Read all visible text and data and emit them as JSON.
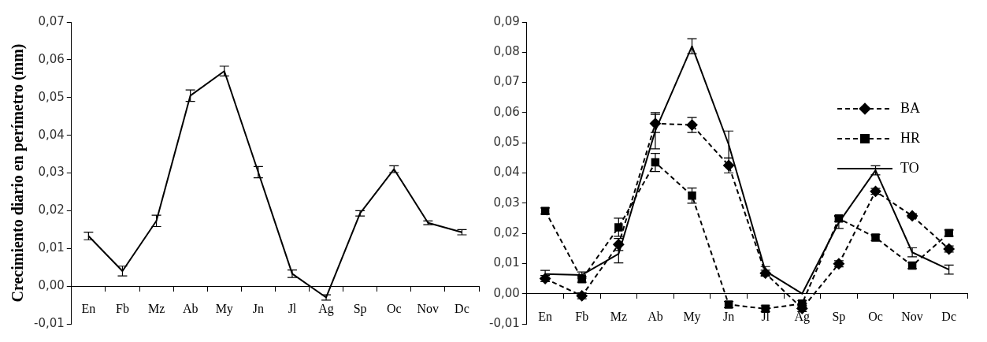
{
  "chart_data": [
    {
      "type": "line",
      "ylabel": "Crecimiento diario en perímetro (mm)",
      "categories": [
        "En",
        "Fb",
        "Mz",
        "Ab",
        "My",
        "Jn",
        "Jl",
        "Ag",
        "Sp",
        "Oc",
        "Nov",
        "Dc"
      ],
      "ylim": [
        -0.01,
        0.07
      ],
      "yticks": [
        {
          "value": -0.01,
          "label": "-0,01"
        },
        {
          "value": 0,
          "label": "0,00"
        },
        {
          "value": 0.01,
          "label": "0,01"
        },
        {
          "value": 0.02,
          "label": "0,02"
        },
        {
          "value": 0.03,
          "label": "0,03"
        },
        {
          "value": 0.04,
          "label": "0,04"
        },
        {
          "value": 0.05,
          "label": "0,05"
        },
        {
          "value": 0.06,
          "label": "0,06"
        },
        {
          "value": 0.07,
          "label": "0,07"
        }
      ],
      "grid": false,
      "legend": false,
      "line_style": "solid",
      "series": [
        {
          "color": "#000000",
          "values": [
            0.0133,
            0.004,
            0.0173,
            0.0505,
            0.057,
            0.0302,
            0.0033,
            -0.003,
            0.0193,
            0.031,
            0.0168,
            0.0143
          ],
          "errors": [
            0.001,
            0.0013,
            0.0015,
            0.0015,
            0.0013,
            0.0015,
            0.001,
            0.0007,
            0.0007,
            0.0009,
            0.0005,
            0.0007
          ]
        }
      ]
    },
    {
      "type": "line",
      "categories": [
        "En",
        "Fb",
        "Mz",
        "Ab",
        "My",
        "Jn",
        "Jl",
        "Ag",
        "Sp",
        "Oc",
        "Nov",
        "Dc"
      ],
      "ylim": [
        -0.01,
        0.09
      ],
      "yticks": [
        {
          "value": -0.01,
          "label": "-0,01"
        },
        {
          "value": 0,
          "label": "0,00"
        },
        {
          "value": 0.01,
          "label": "0,01"
        },
        {
          "value": 0.02,
          "label": "0,02"
        },
        {
          "value": 0.03,
          "label": "0,03"
        },
        {
          "value": 0.04,
          "label": "0,04"
        },
        {
          "value": 0.05,
          "label": "0,05"
        },
        {
          "value": 0.06,
          "label": "0,06"
        },
        {
          "value": 0.07,
          "label": "0,07"
        },
        {
          "value": 0.08,
          "label": "0,08"
        },
        {
          "value": 0.09,
          "label": "0,09"
        }
      ],
      "grid": false,
      "legend": "top right",
      "series": [
        {
          "name": "BA",
          "color": "#000000",
          "marker": "diamond",
          "line_style": "dashed",
          "values": [
            0.005,
            -0.0007,
            0.0163,
            0.0564,
            0.0559,
            0.0425,
            0.0068,
            -0.0049,
            0.0099,
            0.0339,
            0.0258,
            0.0148
          ],
          "errors": [
            0.001,
            0.001,
            0.002,
            0.003,
            0.0025,
            0.0025,
            0.001,
            0.001,
            0.001,
            0.001,
            0.0007,
            0.001
          ]
        },
        {
          "name": "HR",
          "color": "#000000",
          "marker": "square",
          "line_style": "dashed",
          "values": [
            0.0274,
            0.0048,
            0.022,
            0.0435,
            0.0325,
            -0.0036,
            -0.005,
            -0.0033,
            0.0249,
            0.0186,
            0.0093,
            0.0201
          ],
          "errors": [
            0.001,
            0.001,
            0.003,
            0.003,
            0.0025,
            0.001,
            0.001,
            0.001,
            0.001,
            0.001,
            0.001,
            0.001
          ]
        },
        {
          "name": "TO",
          "color": "#000000",
          "line_style": "solid",
          "values": [
            0.0065,
            0.0062,
            0.0132,
            0.054,
            0.082,
            0.0494,
            0.0075,
            0,
            0.0236,
            0.0409,
            0.0137,
            0.008
          ],
          "errors": [
            0.0012,
            0.001,
            0.003,
            0.006,
            0.0025,
            0.0045,
            0.0015,
            null,
            0.002,
            0.0015,
            0.0015,
            0.0015
          ]
        }
      ]
    }
  ]
}
